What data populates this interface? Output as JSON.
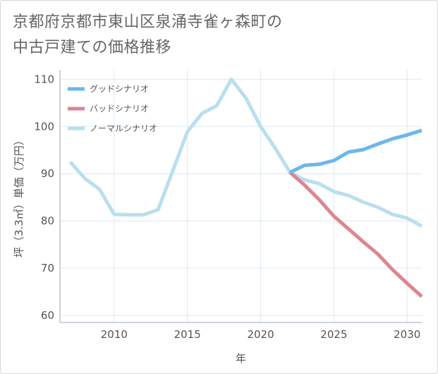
{
  "page": {
    "title_line1": "京都府京都市東山区泉涌寺雀ヶ森町の",
    "title_line2": "中古戸建ての価格推移"
  },
  "chart_data": {
    "type": "line",
    "title": "京都府京都市東山区泉涌寺雀ヶ森町の中古戸建ての価格推移",
    "xlabel": "年",
    "ylabel": "坪（3.3㎡）単価（万円）",
    "xlim": [
      2006.3,
      2031
    ],
    "ylim": [
      58.5,
      112
    ],
    "x_ticks": [
      2010,
      2015,
      2020,
      2025,
      2030
    ],
    "y_ticks": [
      60,
      70,
      80,
      90,
      100,
      110
    ],
    "grid": true,
    "legend_position": "top-left",
    "series": [
      {
        "name": "グッドシナリオ",
        "color": "#6cb7ec",
        "x": [
          2022,
          2023,
          2024,
          2025,
          2026,
          2027,
          2028,
          2029,
          2030,
          2031
        ],
        "y": [
          90.3,
          91.8,
          92.0,
          92.8,
          94.6,
          95.1,
          96.3,
          97.4,
          98.2,
          99.2
        ]
      },
      {
        "name": "バッドシナリオ",
        "color": "#dd8591",
        "x": [
          2022,
          2023,
          2024,
          2025,
          2026,
          2027,
          2028,
          2029,
          2030,
          2031
        ],
        "y": [
          90.3,
          87.6,
          84.5,
          81.0,
          78.3,
          75.6,
          73.0,
          69.7,
          66.8,
          64.0
        ]
      },
      {
        "name": "ノーマルシナリオ",
        "color": "#b9dfee",
        "x": [
          2007,
          2008,
          2009,
          2010,
          2011,
          2012,
          2013,
          2014,
          2015,
          2016,
          2017,
          2018,
          2019,
          2020,
          2021,
          2022,
          2023,
          2024,
          2025,
          2026,
          2027,
          2028,
          2029,
          2030,
          2031
        ],
        "y": [
          92.5,
          89.0,
          86.7,
          81.4,
          81.3,
          81.3,
          82.4,
          90.6,
          98.9,
          102.8,
          104.4,
          110.0,
          106.0,
          100.0,
          95.4,
          90.3,
          88.7,
          87.9,
          86.2,
          85.4,
          84.0,
          82.9,
          81.4,
          80.6,
          78.9
        ]
      }
    ]
  }
}
